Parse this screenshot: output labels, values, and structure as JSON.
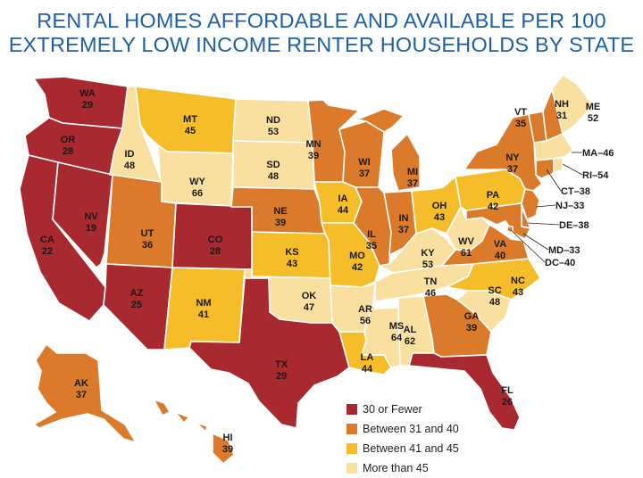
{
  "title_line1": "RENTAL HOMES AFFORDABLE AND AVAILABLE PER 100",
  "title_line2": "EXTREMELY LOW INCOME RENTER HOUSEHOLDS BY STATE",
  "colors": {
    "c1": "#a8292f",
    "c2": "#db7a2a",
    "c3": "#f6bd2b",
    "c4": "#f9dfa0"
  },
  "legend": [
    {
      "label": "30 or Fewer",
      "cat": "c1"
    },
    {
      "label": "Between 31 and 40",
      "cat": "c2"
    },
    {
      "label": "Between 41 and 45",
      "cat": "c3"
    },
    {
      "label": "More than 45",
      "cat": "c4"
    }
  ],
  "states": [
    {
      "id": "WA",
      "value": "29",
      "cat": "c1"
    },
    {
      "id": "OR",
      "value": "28",
      "cat": "c1"
    },
    {
      "id": "CA",
      "value": "22",
      "cat": "c1"
    },
    {
      "id": "NV",
      "value": "19",
      "cat": "c1"
    },
    {
      "id": "ID",
      "value": "48",
      "cat": "c4"
    },
    {
      "id": "MT",
      "value": "45",
      "cat": "c3"
    },
    {
      "id": "WY",
      "value": "66",
      "cat": "c4"
    },
    {
      "id": "UT",
      "value": "36",
      "cat": "c2"
    },
    {
      "id": "AZ",
      "value": "25",
      "cat": "c1"
    },
    {
      "id": "CO",
      "value": "28",
      "cat": "c1"
    },
    {
      "id": "NM",
      "value": "41",
      "cat": "c3"
    },
    {
      "id": "ND",
      "value": "53",
      "cat": "c4"
    },
    {
      "id": "SD",
      "value": "48",
      "cat": "c4"
    },
    {
      "id": "NE",
      "value": "39",
      "cat": "c2"
    },
    {
      "id": "KS",
      "value": "43",
      "cat": "c3"
    },
    {
      "id": "OK",
      "value": "47",
      "cat": "c4"
    },
    {
      "id": "TX",
      "value": "29",
      "cat": "c1"
    },
    {
      "id": "MN",
      "value": "39",
      "cat": "c2"
    },
    {
      "id": "IA",
      "value": "44",
      "cat": "c3"
    },
    {
      "id": "MO",
      "value": "42",
      "cat": "c3"
    },
    {
      "id": "AR",
      "value": "56",
      "cat": "c4"
    },
    {
      "id": "LA",
      "value": "44",
      "cat": "c3"
    },
    {
      "id": "WI",
      "value": "37",
      "cat": "c2"
    },
    {
      "id": "IL",
      "value": "35",
      "cat": "c2"
    },
    {
      "id": "MS",
      "value": "64",
      "cat": "c4"
    },
    {
      "id": "MI",
      "value": "37",
      "cat": "c2"
    },
    {
      "id": "IN",
      "value": "37",
      "cat": "c2"
    },
    {
      "id": "KY",
      "value": "53",
      "cat": "c4"
    },
    {
      "id": "TN",
      "value": "46",
      "cat": "c4"
    },
    {
      "id": "AL",
      "value": "62",
      "cat": "c4"
    },
    {
      "id": "OH",
      "value": "43",
      "cat": "c3"
    },
    {
      "id": "WV",
      "value": "61",
      "cat": "c4"
    },
    {
      "id": "GA",
      "value": "39",
      "cat": "c2"
    },
    {
      "id": "FL",
      "value": "26",
      "cat": "c1"
    },
    {
      "id": "SC",
      "value": "48",
      "cat": "c4"
    },
    {
      "id": "NC",
      "value": "43",
      "cat": "c3"
    },
    {
      "id": "VA",
      "value": "40",
      "cat": "c2"
    },
    {
      "id": "PA",
      "value": "42",
      "cat": "c3"
    },
    {
      "id": "NY",
      "value": "37",
      "cat": "c2"
    },
    {
      "id": "VT",
      "value": "35",
      "cat": "c2"
    },
    {
      "id": "NH",
      "value": "31",
      "cat": "c2"
    },
    {
      "id": "ME",
      "value": "52",
      "cat": "c4"
    },
    {
      "id": "MA",
      "value": "46",
      "cat": "c4"
    },
    {
      "id": "RI",
      "value": "54",
      "cat": "c4"
    },
    {
      "id": "CT",
      "value": "38",
      "cat": "c2"
    },
    {
      "id": "NJ",
      "value": "33",
      "cat": "c2"
    },
    {
      "id": "DE",
      "value": "38",
      "cat": "c2"
    },
    {
      "id": "MD",
      "value": "33",
      "cat": "c2"
    },
    {
      "id": "DC",
      "value": "40",
      "cat": "c2"
    },
    {
      "id": "AK",
      "value": "37",
      "cat": "c2"
    },
    {
      "id": "HI",
      "value": "39",
      "cat": "c2"
    }
  ],
  "external_labels": {
    "MA": "MA–46",
    "RI": "RI–54",
    "CT": "CT–38",
    "NJ": "NJ–33",
    "DE": "DE–38",
    "MD": "MD–33",
    "DC": "DC–40"
  }
}
